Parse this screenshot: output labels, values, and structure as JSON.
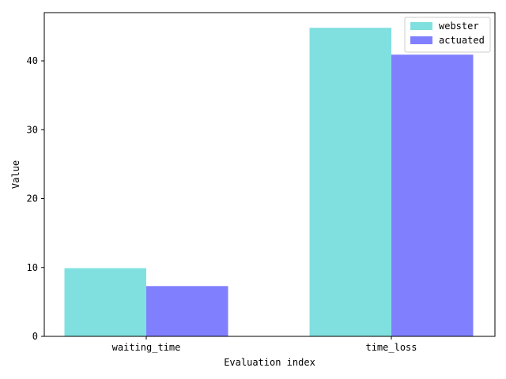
{
  "chart_data": {
    "type": "bar",
    "title": "",
    "xlabel": "Evaluation index",
    "ylabel": "Value",
    "categories": [
      "waiting_time",
      "time_loss"
    ],
    "series": [
      {
        "name": "webster",
        "values": [
          9.9,
          44.8
        ],
        "color": "#80e0e0"
      },
      {
        "name": "actuated",
        "values": [
          7.3,
          40.9
        ],
        "color": "#8080ff"
      }
    ],
    "ylim": [
      0,
      47
    ],
    "yticks": [
      0,
      10,
      20,
      30,
      40
    ],
    "grid": false,
    "legend": "top-right"
  }
}
